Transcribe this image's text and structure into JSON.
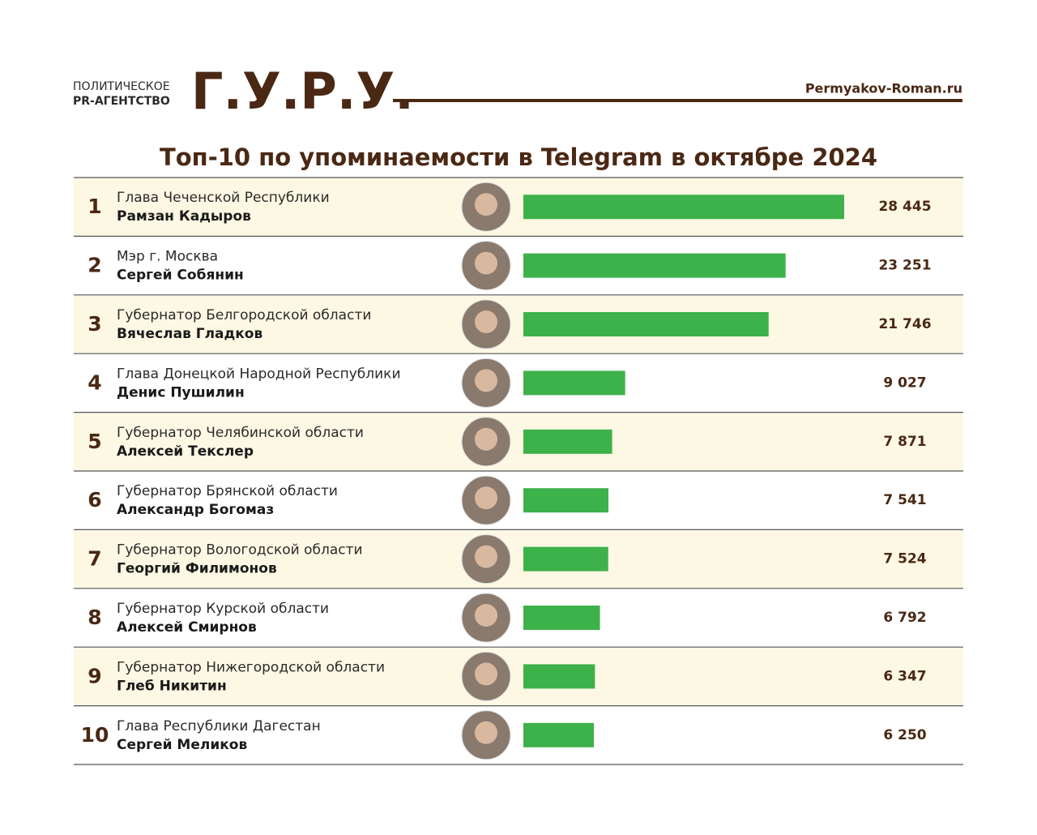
{
  "header": {
    "agency_line1": "ПОЛИТИЧЕСКОЕ",
    "agency_line2": "PR-АГЕНТСТВО",
    "brand": "Г.У.Р.У.",
    "site": "Permyakov-Roman.ru"
  },
  "chart_data": {
    "type": "bar",
    "title": "Топ-10 по упоминаемости в Telegram в октябре 2024",
    "ranks": [
      1,
      2,
      3,
      4,
      5,
      6,
      7,
      8,
      9,
      10
    ],
    "positions": [
      "Глава Чеченской Республики",
      "Мэр г. Москва",
      "Губернатор Белгородской области",
      "Глава Донецкой Народной Республики",
      "Губернатор Челябинской области",
      "Губернатор Брянской области",
      "Губернатор Вологодской области",
      "Губернатор Курской области",
      "Губернатор Нижегородской области",
      "Глава Республики Дагестан"
    ],
    "categories": [
      "Рамзан Кадыров",
      "Сергей Собянин",
      "Вячеслав Гладков",
      "Денис Пушилин",
      "Алексей Текслер",
      "Александр Богомаз",
      "Георгий Филимонов",
      "Алексей Смирнов",
      "Глеб Никитин",
      "Сергей Меликов"
    ],
    "values": [
      28445,
      23251,
      21746,
      9027,
      7871,
      7541,
      7524,
      6792,
      6347,
      6250
    ],
    "value_labels": [
      "28 445",
      "23 251",
      "21 746",
      "9 027",
      "7 871",
      "7 541",
      "7 524",
      "6 792",
      "6 347",
      "6 250"
    ],
    "color": "#3db14a"
  }
}
